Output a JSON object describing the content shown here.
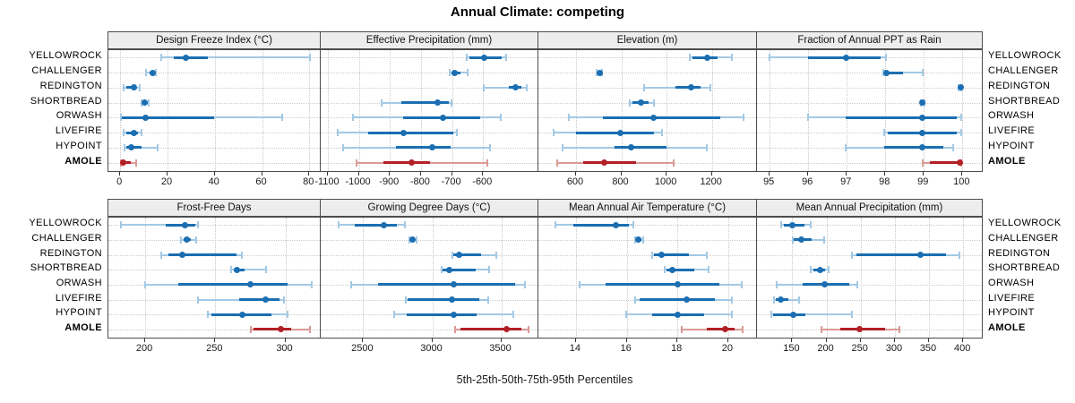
{
  "title": "Annual Climate: competing",
  "caption": "5th-25th-50th-75th-95th Percentiles",
  "colors": {
    "series_strong": "#1b6eb1",
    "series_light": "#a3c9e4",
    "highlight_strong": "#b22025",
    "highlight_light": "#dc9a96",
    "strip_bg": "#ededed",
    "panel_border": "#4d4d4d",
    "grid": "#cccccc"
  },
  "chart_data": {
    "type": "dot-interval",
    "grid": "dotted",
    "legend_position": "none",
    "percentiles": [
      "5th",
      "25th",
      "50th",
      "75th",
      "95th"
    ],
    "sites": [
      "YELLOWROCK",
      "CHALLENGER",
      "REDINGTON",
      "SHORTBREAD",
      "ORWASH",
      "LIVEFIRE",
      "HYPOINT",
      "AMOLE"
    ],
    "highlight_site": "AMOLE",
    "panels": [
      {
        "title": "Design Freeze Index (°C)",
        "xlim": [
          -5,
          85.2
        ],
        "ticks": [
          0,
          20,
          40,
          60,
          80
        ],
        "tick_labels": [
          "0",
          "20",
          "40",
          "60",
          "80"
        ],
        "values": [
          [
            17.5,
            23,
            28,
            37.5,
            81
          ],
          [
            11,
            12.5,
            14,
            14.8,
            15.3
          ],
          [
            1.5,
            2.5,
            6,
            7,
            8.5
          ],
          [
            9,
            9.5,
            10.5,
            11.7,
            12.3
          ],
          [
            0.5,
            0.8,
            11,
            40,
            69
          ],
          [
            1.5,
            2.5,
            6,
            7.5,
            9
          ],
          [
            2,
            2.5,
            4.7,
            9,
            16
          ],
          [
            0.4,
            0.7,
            1.3,
            4.7,
            7
          ]
        ]
      },
      {
        "title": "Effective Precipitation (mm)",
        "xlim": [
          -1123,
          -419
        ],
        "ticks": [
          -1100,
          -1000,
          -900,
          -800,
          -700,
          -600
        ],
        "tick_labels": [
          "-1100",
          "-1000",
          "-900",
          "-800",
          "-700",
          "-600"
        ],
        "values": [
          [
            -650,
            -640,
            -592,
            -535,
            -522
          ],
          [
            -705,
            -697,
            -688,
            -668,
            -645
          ],
          [
            -595,
            -512,
            -490,
            -472,
            -455
          ],
          [
            -925,
            -860,
            -742,
            -706,
            -697
          ],
          [
            -1017,
            -856,
            -725,
            -605,
            -538
          ],
          [
            -1068,
            -970,
            -855,
            -692,
            -680
          ],
          [
            -1050,
            -880,
            -760,
            -700,
            -574
          ],
          [
            -1006,
            -919,
            -827,
            -767,
            -581
          ]
        ]
      },
      {
        "title": "Elevation (m)",
        "xlim": [
          434,
          1403
        ],
        "ticks": [
          600,
          800,
          1000,
          1200
        ],
        "tick_labels": [
          "600",
          "800",
          "1000",
          "1200"
        ],
        "values": [
          [
            1107,
            1118,
            1186,
            1230,
            1297
          ],
          [
            692,
            699,
            706,
            712,
            719
          ],
          [
            904,
            1043,
            1113,
            1156,
            1199
          ],
          [
            841,
            852,
            891,
            924,
            950
          ],
          [
            571,
            723,
            948,
            1242,
            1348
          ],
          [
            503,
            600,
            800,
            950,
            984
          ],
          [
            540,
            772,
            845,
            1003,
            1182
          ],
          [
            517,
            633,
            728,
            868,
            1037
          ]
        ]
      },
      {
        "title": "Fraction of Annual PPT as Rain",
        "xlim": [
          94.67,
          100.55
        ],
        "ticks": [
          95,
          96,
          97,
          98,
          99,
          100
        ],
        "tick_labels": [
          "95",
          "96",
          "97",
          "98",
          "99",
          "100"
        ],
        "values": [
          [
            95.0,
            96.0,
            97.0,
            97.9,
            98.05
          ],
          [
            97.98,
            98.0,
            98.05,
            98.5,
            99.0
          ],
          [
            99.95,
            99.98,
            100.0,
            100.0,
            100.02
          ],
          [
            98.95,
            98.98,
            99.0,
            99.02,
            99.05
          ],
          [
            96.0,
            97.0,
            99.0,
            99.9,
            100.0
          ],
          [
            98.0,
            98.1,
            99.0,
            99.9,
            100.0
          ],
          [
            97.0,
            98.0,
            99.0,
            99.55,
            99.8
          ],
          [
            99.0,
            99.2,
            99.98,
            100.0,
            100.02
          ]
        ]
      },
      {
        "title": "Frost-Free Days",
        "xlim": [
          173.7,
          325.9
        ],
        "ticks": [
          200,
          250,
          300
        ],
        "tick_labels": [
          "200",
          "250",
          "300"
        ],
        "values": [
          [
            183,
            215,
            229,
            236,
            238
          ],
          [
            226,
            228,
            230,
            233,
            237
          ],
          [
            212,
            217,
            227,
            266,
            270
          ],
          [
            262,
            264,
            266,
            272,
            287
          ],
          [
            200,
            224,
            276,
            303,
            320
          ],
          [
            238,
            268,
            287,
            297,
            300
          ],
          [
            245,
            248,
            270,
            291,
            303
          ],
          [
            276,
            278,
            298,
            305,
            319
          ]
        ]
      },
      {
        "title": "Growing Degree Days (°C)",
        "xlim": [
          2192,
          3776
        ],
        "ticks": [
          2500,
          3000,
          3500
        ],
        "tick_labels": [
          "2500",
          "3000",
          "3500"
        ],
        "values": [
          [
            2320,
            2440,
            2655,
            2750,
            2810
          ],
          [
            2841,
            2848,
            2860,
            2872,
            2891
          ],
          [
            3152,
            3160,
            3200,
            3363,
            3476
          ],
          [
            3076,
            3085,
            3128,
            3326,
            3424
          ],
          [
            2417,
            2610,
            3167,
            3613,
            3685
          ],
          [
            2815,
            2830,
            3152,
            3352,
            3417
          ],
          [
            2728,
            2820,
            3161,
            3330,
            3602
          ],
          [
            3175,
            3210,
            3548,
            3660,
            3710
          ]
        ]
      },
      {
        "title": "Mean Annual Air Temperature (°C)",
        "xlim": [
          12.52,
          21.17
        ],
        "ticks": [
          14,
          16,
          18,
          20
        ],
        "tick_labels": [
          "14",
          "16",
          "18",
          "20"
        ],
        "values": [
          [
            13.2,
            13.9,
            15.6,
            16.1,
            16.3
          ],
          [
            16.35,
            16.42,
            16.5,
            16.6,
            16.7
          ],
          [
            17.05,
            17.1,
            17.4,
            18.5,
            19.2
          ],
          [
            17.55,
            17.6,
            17.85,
            18.7,
            19.3
          ],
          [
            14.15,
            15.2,
            18.05,
            19.7,
            20.6
          ],
          [
            16.35,
            16.55,
            18.4,
            19.55,
            20.2
          ],
          [
            16.0,
            17.05,
            18.05,
            19.1,
            20.2
          ],
          [
            18.2,
            19.2,
            19.95,
            20.3,
            20.65
          ]
        ]
      },
      {
        "title": "Mean Annual Precipitation (mm)",
        "xlim": [
          98.3,
          429.9
        ],
        "ticks": [
          150,
          200,
          250,
          300,
          350,
          400
        ],
        "tick_labels": [
          "150",
          "200",
          "250",
          "300",
          "350",
          "400"
        ],
        "values": [
          [
            134,
            138,
            150,
            168,
            177
          ],
          [
            151,
            153,
            164,
            179,
            197
          ],
          [
            238,
            245,
            340,
            377,
            397
          ],
          [
            178,
            181,
            191,
            199,
            204
          ],
          [
            127,
            166,
            198,
            234,
            246
          ],
          [
            123,
            126,
            133,
            144,
            161
          ],
          [
            119,
            122,
            152,
            170,
            238
          ],
          [
            194,
            221,
            250,
            287,
            308
          ]
        ]
      }
    ]
  }
}
